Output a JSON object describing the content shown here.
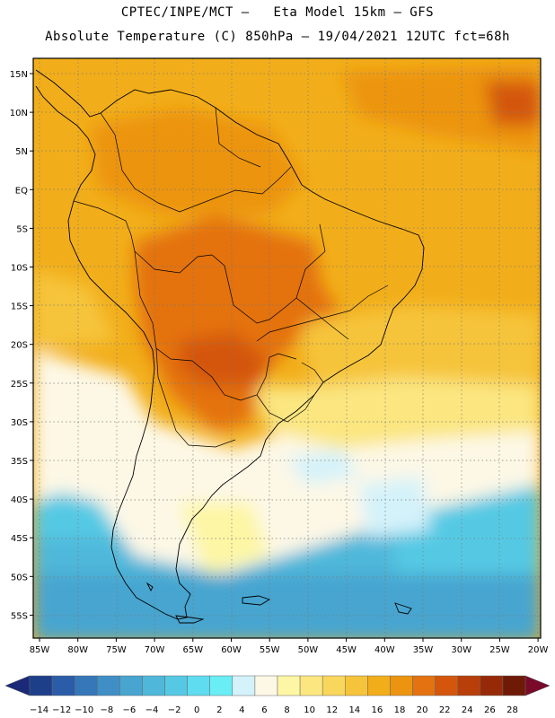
{
  "header": {
    "line1": "CPTEC/INPE/MCT –   Eta Model 15km – GFS",
    "line2": "Absolute Temperature (C) 850hPa – 19/04/2021 12UTC fct=68h"
  },
  "axes": {
    "lat_labels": [
      "15N",
      "10N",
      "5N",
      "EQ",
      "5S",
      "10S",
      "15S",
      "20S",
      "25S",
      "30S",
      "35S",
      "40S",
      "45S",
      "50S",
      "55S"
    ],
    "lon_labels": [
      "85W",
      "80W",
      "75W",
      "70W",
      "65W",
      "60W",
      "55W",
      "50W",
      "45W",
      "40W",
      "35W",
      "30W",
      "25W",
      "20W"
    ]
  },
  "colorbar": {
    "labels": [
      "-14",
      "-12",
      "-10",
      "-8",
      "-6",
      "-4",
      "-2",
      "0",
      "2",
      "4",
      "6",
      "8",
      "10",
      "12",
      "14",
      "16",
      "18",
      "20",
      "22",
      "24",
      "26",
      "28"
    ],
    "colors": [
      "#1d3f8a",
      "#2a5ca8",
      "#3577b8",
      "#3f8fc6",
      "#47a5d0",
      "#4fb8da",
      "#55c9e4",
      "#5fdcf0",
      "#6aeef6",
      "#d4f2fa",
      "#fdf8e6",
      "#fdf6a4",
      "#fbe680",
      "#f9d65c",
      "#f6c43a",
      "#f2ae1a",
      "#ec9410",
      "#e47210",
      "#d4560c",
      "#b83e0a",
      "#962a08",
      "#6f1a06"
    ],
    "end_colors": {
      "low": "#1a2a78",
      "high": "#7a0a2a"
    }
  },
  "map": {
    "description_colors": {
      "ocean_warm": "#f2ae1a",
      "land_hot": "#e47210",
      "cold_south": "#4fb8da"
    }
  }
}
